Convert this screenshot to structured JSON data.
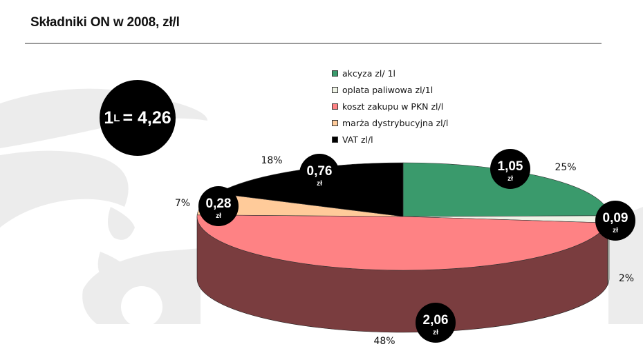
{
  "header": {
    "title": "Składniki ON w 2008, zł/l"
  },
  "total_badge": {
    "number": "1",
    "unit": "L",
    "value": "= 4,26"
  },
  "chart_data": {
    "type": "pie",
    "title": "Składniki ON w 2008, zł/l",
    "legend_position": "top-right",
    "slices": [
      {
        "label": "akcyza zl/ 1l",
        "value": 1.05,
        "value_label": "1,05",
        "unit": "zł",
        "percent_label": "25%",
        "color": "#3a9a6c",
        "side_color": "#2c7a53"
      },
      {
        "label": "oplata paliwowa  zl/1l",
        "value": 0.09,
        "value_label": "0,09",
        "unit": "zł",
        "percent_label": "2%",
        "color": "#eef3e6",
        "side_color": "#c9cfc1"
      },
      {
        "label": "koszt zakupu w PKN zl/l",
        "value": 2.06,
        "value_label": "2,06",
        "unit": "zł",
        "percent_label": "48%",
        "color": "#fe8284",
        "side_color": "#7a3d3f"
      },
      {
        "label": "marża dystrybucyjna zl/l",
        "value": 0.28,
        "value_label": "0,28",
        "unit": "zł",
        "percent_label": "7%",
        "color": "#ffcb9a",
        "side_color": "#c99d72"
      },
      {
        "label": "VAT zl/l",
        "value": 0.76,
        "value_label": "0,76",
        "unit": "zł",
        "percent_label": "18%",
        "color": "#000000",
        "side_color": "#000000"
      }
    ]
  }
}
